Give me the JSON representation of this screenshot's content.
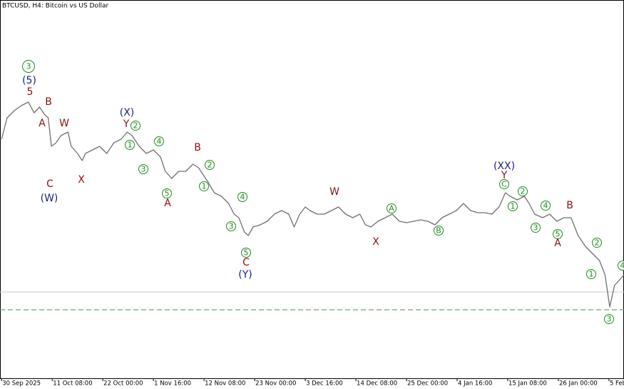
{
  "chart_data": {
    "type": "line",
    "title": "BTCUSD, H4:  Bitcoin vs US Dollar",
    "color": "#707070",
    "xlim": [
      -2,
      787
    ],
    "ylim": [
      0,
      530
    ],
    "xticks": [
      {
        "value": 0,
        "label": "30 Sep 2025"
      },
      {
        "value": 64,
        "label": "11 Oct 08:00"
      },
      {
        "value": 128,
        "label": "22 Oct 00:00"
      },
      {
        "value": 192,
        "label": "1 Nov 16:00"
      },
      {
        "value": 256,
        "label": "12 Nov 08:00"
      },
      {
        "value": 320,
        "label": "23 Nov 00:00"
      },
      {
        "value": 384,
        "label": "3 Dec 16:00"
      },
      {
        "value": 448,
        "label": "14 Dec 08:00"
      },
      {
        "value": 512,
        "label": "25 Dec 00:00"
      },
      {
        "value": 576,
        "label": "4 Jan 16:00"
      },
      {
        "value": 640,
        "label": "15 Jan 08:00"
      },
      {
        "value": 704,
        "label": "26 Jan 00:00"
      },
      {
        "value": 768,
        "label": "5 Feb"
      }
    ],
    "x": [
      0,
      7,
      16,
      25,
      34,
      41,
      48,
      54,
      59,
      63,
      69,
      75,
      84,
      88,
      96,
      102,
      106,
      115,
      124,
      133,
      142,
      151,
      159,
      165,
      174,
      183,
      192,
      201,
      207,
      215,
      224,
      233,
      242,
      249,
      255,
      261,
      269,
      278,
      287,
      294,
      300,
      307,
      312,
      318,
      327,
      336,
      345,
      354,
      363,
      370,
      377,
      384,
      390,
      399,
      408,
      417,
      426,
      435,
      444,
      453,
      460,
      467,
      476,
      485,
      494,
      503,
      512,
      521,
      530,
      539,
      548,
      557,
      566,
      575,
      584,
      593,
      602,
      611,
      620,
      629,
      637,
      643,
      652,
      661,
      667,
      674,
      684,
      693,
      702,
      711,
      720,
      729,
      738,
      747,
      756,
      763,
      769,
      775,
      783,
      787
    ],
    "values": [
      335,
      365,
      375,
      382,
      387,
      372,
      380,
      370,
      365,
      325,
      330,
      340,
      345,
      325,
      315,
      305,
      315,
      320,
      325,
      315,
      330,
      335,
      345,
      340,
      325,
      315,
      320,
      310,
      290,
      280,
      290,
      290,
      300,
      295,
      285,
      275,
      260,
      255,
      245,
      230,
      225,
      205,
      200,
      212,
      215,
      220,
      230,
      235,
      230,
      212,
      230,
      240,
      235,
      230,
      230,
      235,
      240,
      230,
      225,
      230,
      215,
      212,
      220,
      225,
      230,
      220,
      218,
      220,
      222,
      220,
      215,
      225,
      230,
      235,
      245,
      235,
      232,
      232,
      230,
      240,
      260,
      255,
      250,
      255,
      245,
      230,
      225,
      230,
      220,
      225,
      225,
      200,
      185,
      175,
      165,
      145,
      100,
      130,
      140,
      145
    ],
    "hlines": [
      {
        "value": 121,
        "color": "#c8c8c8",
        "dashed": false
      },
      {
        "value": 96,
        "color": "#6aa86a",
        "dashed": true
      }
    ],
    "annotations": [
      {
        "text": "3",
        "color": "#1e8c1e",
        "circled": true
      },
      {
        "text": "(5)",
        "color": "#1a237e",
        "circled": false
      },
      {
        "text": "5",
        "color": "#8b1010",
        "circled": false
      },
      {
        "text": "B",
        "color": "#8b1010",
        "circled": false
      },
      {
        "text": "A",
        "color": "#8b1010",
        "circled": false
      },
      {
        "text": "W",
        "color": "#8b1010",
        "circled": false
      },
      {
        "text": "C",
        "color": "#8b1010",
        "circled": false
      },
      {
        "text": "(W)",
        "color": "#1a237e",
        "circled": false
      },
      {
        "text": "X",
        "color": "#8b1010",
        "circled": false
      },
      {
        "text": "(X)",
        "color": "#1a237e",
        "circled": false
      },
      {
        "text": "Y",
        "color": "#8b1010",
        "circled": false
      },
      {
        "text": "2",
        "color": "#1e8c1e",
        "circled": true
      },
      {
        "text": "1",
        "color": "#1e8c1e",
        "circled": true
      },
      {
        "text": "3",
        "color": "#1e8c1e",
        "circled": true
      },
      {
        "text": "4",
        "color": "#1e8c1e",
        "circled": true
      },
      {
        "text": "B",
        "color": "#8b1010",
        "circled": false
      },
      {
        "text": "2",
        "color": "#1e8c1e",
        "circled": true
      },
      {
        "text": "1",
        "color": "#1e8c1e",
        "circled": true
      },
      {
        "text": "5",
        "color": "#1e8c1e",
        "circled": true
      },
      {
        "text": "A",
        "color": "#8b1010",
        "circled": false
      },
      {
        "text": "4",
        "color": "#1e8c1e",
        "circled": true
      },
      {
        "text": "3",
        "color": "#1e8c1e",
        "circled": true
      },
      {
        "text": "5",
        "color": "#1e8c1e",
        "circled": true
      },
      {
        "text": "C",
        "color": "#8b1010",
        "circled": false
      },
      {
        "text": "(Y)",
        "color": "#1a237e",
        "circled": false
      },
      {
        "text": "W",
        "color": "#8b1010",
        "circled": false
      },
      {
        "text": "A",
        "color": "#1e8c1e",
        "circled": true
      },
      {
        "text": "X",
        "color": "#8b1010",
        "circled": false
      },
      {
        "text": "B",
        "color": "#1e8c1e",
        "circled": true
      },
      {
        "text": "(XX)",
        "color": "#1a237e",
        "circled": false
      },
      {
        "text": "Y",
        "color": "#8b1010",
        "circled": false
      },
      {
        "text": "C",
        "color": "#1e8c1e",
        "circled": true
      },
      {
        "text": "2",
        "color": "#1e8c1e",
        "circled": true
      },
      {
        "text": "1",
        "color": "#1e8c1e",
        "circled": true
      },
      {
        "text": "4",
        "color": "#1e8c1e",
        "circled": true
      },
      {
        "text": "B",
        "color": "#8b1010",
        "circled": false
      },
      {
        "text": "3",
        "color": "#1e8c1e",
        "circled": true
      },
      {
        "text": "5",
        "color": "#1e8c1e",
        "circled": true
      },
      {
        "text": "A",
        "color": "#8b1010",
        "circled": false
      },
      {
        "text": "2",
        "color": "#1e8c1e",
        "circled": true
      },
      {
        "text": "1",
        "color": "#1e8c1e",
        "circled": true
      },
      {
        "text": "3",
        "color": "#1e8c1e",
        "circled": true
      },
      {
        "text": "4",
        "color": "#1e8c1e",
        "circled": true
      }
    ]
  }
}
